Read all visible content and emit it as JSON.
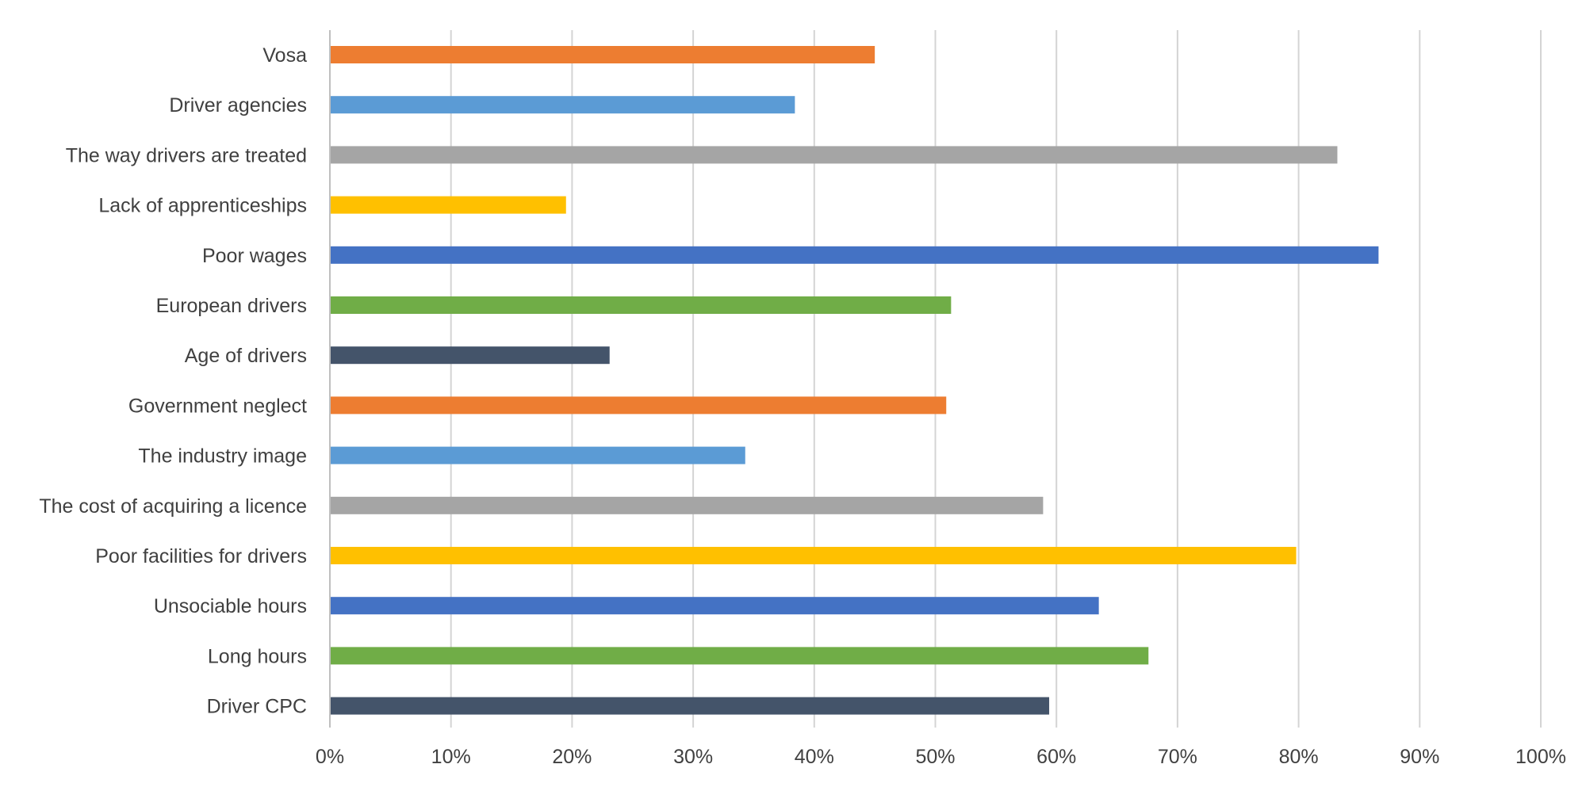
{
  "chart_data": {
    "type": "bar",
    "orientation": "horizontal",
    "title": "",
    "xlabel": "",
    "ylabel": "",
    "xlim": [
      0,
      100
    ],
    "x_ticks": [
      "0%",
      "10%",
      "20%",
      "30%",
      "40%",
      "50%",
      "60%",
      "70%",
      "80%",
      "90%",
      "100%"
    ],
    "grid": "vertical",
    "legend": "none",
    "categories": [
      "Vosa",
      "Driver agencies",
      "The way drivers are treated",
      "Lack of apprenticeships",
      "Poor wages",
      "European drivers",
      "Age of drivers",
      "Government neglect",
      "The industry image",
      "The cost of acquiring a licence",
      "Poor facilities for drivers",
      "Unsociable hours",
      "Long hours",
      "Driver CPC"
    ],
    "values": [
      45,
      38.4,
      83.2,
      19.5,
      86.6,
      51.3,
      23.1,
      50.9,
      34.3,
      58.9,
      79.8,
      63.5,
      67.6,
      59.4
    ],
    "colors": [
      "#ED7D31",
      "#5B9BD5",
      "#A5A5A5",
      "#FFC000",
      "#4472C4",
      "#70AD47",
      "#44546A",
      "#ED7D31",
      "#5B9BD5",
      "#A5A5A5",
      "#FFC000",
      "#4472C4",
      "#70AD47",
      "#44546A"
    ]
  }
}
